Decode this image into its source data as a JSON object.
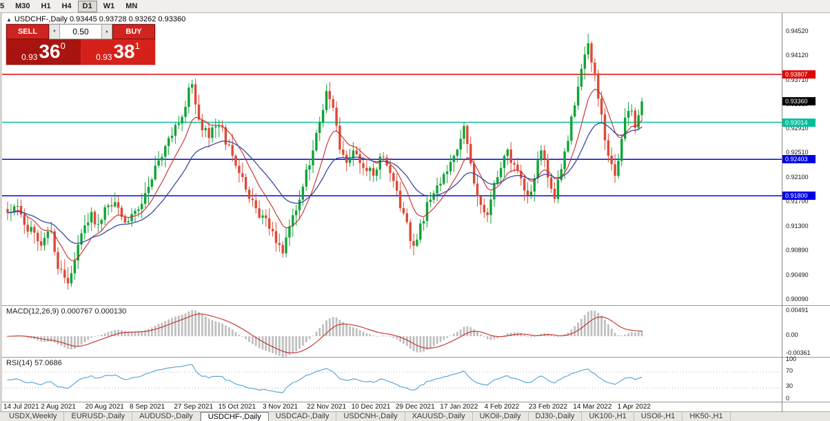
{
  "toolbar": {
    "timeframes": [
      "5",
      "M30",
      "H1",
      "H4",
      "D1",
      "W1",
      "MN"
    ],
    "active_timeframe": "D1"
  },
  "chart": {
    "marker": "▲",
    "title": "USDCHF-,Daily",
    "ohlc": {
      "open": "0.93445",
      "high": "0.93728",
      "low": "0.93262",
      "close": "0.93360"
    }
  },
  "trade_panel": {
    "sell_label": "SELL",
    "buy_label": "BUY",
    "volume": "0.50",
    "bid": {
      "prefix": "0.93",
      "big": "36",
      "sup": "0"
    },
    "ask": {
      "prefix": "0.93",
      "big": "38",
      "sup": "1"
    }
  },
  "price_scale": {
    "ticks": [
      "0.94520",
      "0.94120",
      "0.93710",
      "0.93310",
      "0.92910",
      "0.92510",
      "0.92100",
      "0.91700",
      "0.91300",
      "0.90890",
      "0.90490",
      "0.90090"
    ],
    "levels": [
      {
        "price": "0.93807",
        "value": 0.93807,
        "color": "#dd0806",
        "type": "resistance",
        "line": true
      },
      {
        "price": "0.93360",
        "value": 0.9336,
        "color": "#000000",
        "type": "current-price",
        "line": false
      },
      {
        "price": "0.93014",
        "value": 0.93014,
        "color": "#00bf9c",
        "type": "support",
        "line": true
      },
      {
        "price": "0.92403",
        "value": 0.92403,
        "color": "#0000e6",
        "type": "support",
        "line": true
      },
      {
        "price": "0.91800",
        "value": 0.918,
        "color": "#0000e6",
        "type": "support",
        "line": true
      }
    ]
  },
  "macd": {
    "label": "MACD(12,26,9) 0.000767 0.000130",
    "ticks": [
      "0.00491",
      "0.00",
      "-0.00361"
    ]
  },
  "rsi": {
    "label": "RSI(14) 57.0686",
    "ticks": [
      "100",
      "70",
      "30",
      "0"
    ]
  },
  "date_axis": [
    "14 Jul 2021",
    "2 Aug 2021",
    "20 Aug 2021",
    "8 Sep 2021",
    "27 Sep 2021",
    "15 Oct 2021",
    "3 Nov 2021",
    "22 Nov 2021",
    "10 Dec 2021",
    "29 Dec 2021",
    "17 Jan 2022",
    "4 Feb 2022",
    "23 Feb 2022",
    "14 Mar 2022",
    "1 Apr 2022"
  ],
  "tabs": [
    {
      "label": "USDX,Weekly",
      "active": false
    },
    {
      "label": "EURUSD-,Daily",
      "active": false
    },
    {
      "label": "AUDUSD-,Daily",
      "active": false
    },
    {
      "label": "USDCHF-,Daily",
      "active": true
    },
    {
      "label": "USDCAD-,Daily",
      "active": false
    },
    {
      "label": "USDCNH-,Daily",
      "active": false
    },
    {
      "label": "XAUUSD-,Daily",
      "active": false
    },
    {
      "label": "UKOil-,Daily",
      "active": false
    },
    {
      "label": "DJ30-,Daily",
      "active": false
    },
    {
      "label": "UK100-,H1",
      "active": false
    },
    {
      "label": "USOil-,H1",
      "active": false
    },
    {
      "label": "HK50-,H1",
      "active": false
    }
  ],
  "chart_data": {
    "type": "candlestick",
    "symbol": "USDCHF-",
    "timeframe": "Daily",
    "bar_count": 190,
    "price_range": [
      0.8999,
      0.9482
    ],
    "levels": [
      0.93807,
      0.93014,
      0.92403,
      0.918
    ],
    "current_price": 0.9336,
    "waypoints": [
      [
        0,
        0.9152
      ],
      [
        3,
        0.9163
      ],
      [
        6,
        0.9128
      ],
      [
        10,
        0.9103
      ],
      [
        13,
        0.9124
      ],
      [
        15,
        0.9062
      ],
      [
        17,
        0.9038
      ],
      [
        19,
        0.9048
      ],
      [
        22,
        0.9112
      ],
      [
        25,
        0.9148
      ],
      [
        27,
        0.9128
      ],
      [
        30,
        0.9172
      ],
      [
        33,
        0.9158
      ],
      [
        36,
        0.9136
      ],
      [
        40,
        0.9168
      ],
      [
        43,
        0.9208
      ],
      [
        46,
        0.9248
      ],
      [
        49,
        0.9282
      ],
      [
        52,
        0.9318
      ],
      [
        55,
        0.9368
      ],
      [
        57,
        0.9302
      ],
      [
        60,
        0.9278
      ],
      [
        63,
        0.9298
      ],
      [
        66,
        0.9258
      ],
      [
        69,
        0.9218
      ],
      [
        72,
        0.9178
      ],
      [
        75,
        0.9148
      ],
      [
        78,
        0.9128
      ],
      [
        80,
        0.9108
      ],
      [
        82,
        0.9092
      ],
      [
        84,
        0.9128
      ],
      [
        87,
        0.9178
      ],
      [
        90,
        0.9238
      ],
      [
        93,
        0.9298
      ],
      [
        95,
        0.9358
      ],
      [
        97,
        0.9328
      ],
      [
        99,
        0.9252
      ],
      [
        101,
        0.9228
      ],
      [
        103,
        0.9258
      ],
      [
        106,
        0.9228
      ],
      [
        109,
        0.9218
      ],
      [
        112,
        0.9248
      ],
      [
        115,
        0.9208
      ],
      [
        117,
        0.9168
      ],
      [
        119,
        0.9128
      ],
      [
        121,
        0.9098
      ],
      [
        123,
        0.9128
      ],
      [
        126,
        0.9178
      ],
      [
        129,
        0.9198
      ],
      [
        133,
        0.9248
      ],
      [
        136,
        0.9288
      ],
      [
        138,
        0.9238
      ],
      [
        140,
        0.9178
      ],
      [
        143,
        0.9148
      ],
      [
        146,
        0.9218
      ],
      [
        149,
        0.9248
      ],
      [
        152,
        0.9228
      ],
      [
        155,
        0.9178
      ],
      [
        157,
        0.9208
      ],
      [
        159,
        0.9258
      ],
      [
        161,
        0.9218
      ],
      [
        163,
        0.9178
      ],
      [
        165,
        0.9228
      ],
      [
        167,
        0.9278
      ],
      [
        169,
        0.9328
      ],
      [
        171,
        0.9388
      ],
      [
        173,
        0.9438
      ],
      [
        175,
        0.9378
      ],
      [
        177,
        0.9308
      ],
      [
        179,
        0.9248
      ],
      [
        181,
        0.9205
      ],
      [
        183,
        0.9278
      ],
      [
        185,
        0.9328
      ],
      [
        187,
        0.9298
      ],
      [
        189,
        0.9336
      ]
    ]
  },
  "colors": {
    "bull": "#0fa336",
    "bear": "#dd4936",
    "ma_fast": "#c62a24",
    "ma_slow": "#3748a5",
    "macd_hist": "#bfbfbf",
    "macd_signal": "#c62a24",
    "rsi_line": "#4e9fd4",
    "sell_button": "#d02420",
    "buy_button": "#d02420",
    "bid_box": "#aa1410",
    "ask_box": "#d6211b"
  }
}
